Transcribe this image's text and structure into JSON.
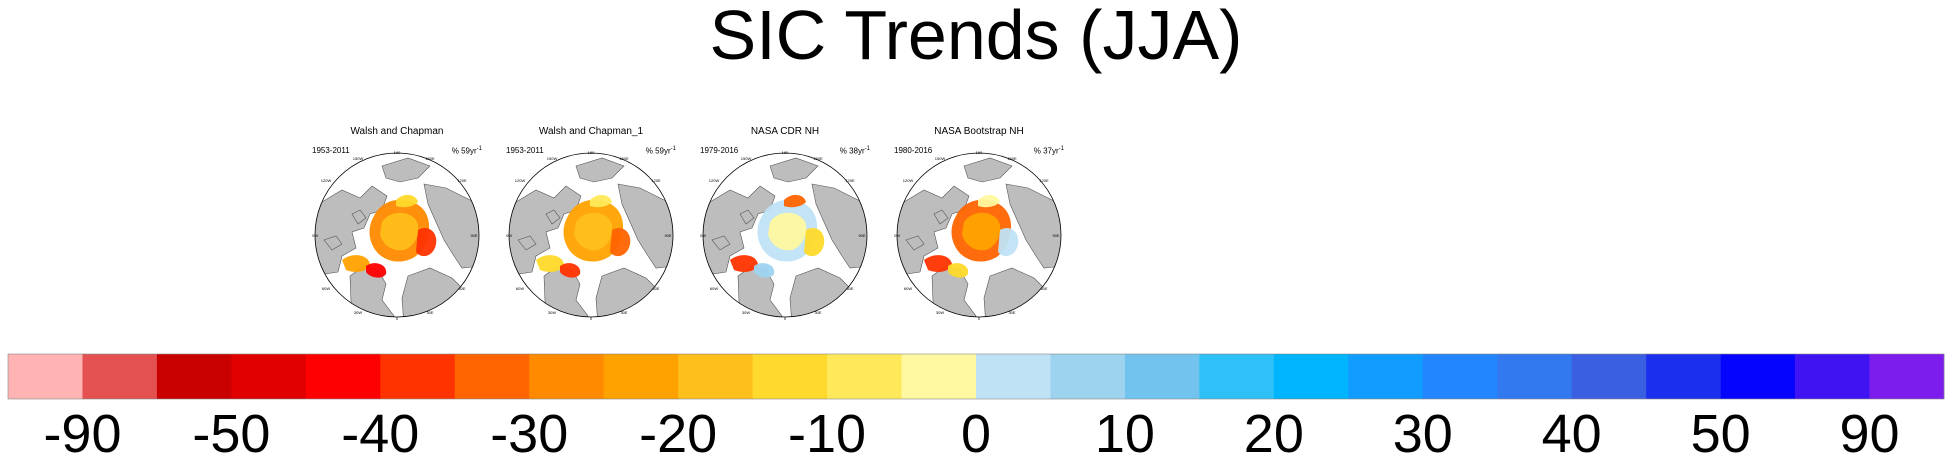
{
  "title": "SIC Trends (JJA)",
  "panels": [
    {
      "title": "Walsh and Chapman",
      "years": "1953-2011",
      "rate": "% 59yr",
      "rate_exp": "-1",
      "variant": 0
    },
    {
      "title": "Walsh and Chapman_1",
      "years": "1953-2011",
      "rate": "% 59yr",
      "rate_exp": "-1",
      "variant": 1
    },
    {
      "title": "NASA CDR NH",
      "years": "1979-2016",
      "rate": "% 38yr",
      "rate_exp": "-1",
      "variant": 2
    },
    {
      "title": "NASA Bootstrap NH",
      "years": "1980-2016",
      "rate": "% 37yr",
      "rate_exp": "-1",
      "variant": 3
    }
  ],
  "map_labels": {
    "top": "180",
    "bottom": "0",
    "left": "90W",
    "right": "90E",
    "ul1": "150W",
    "ul2": "120W",
    "ur1": "150E",
    "ur2": "120E",
    "ll1": "60W",
    "ll2": "30W",
    "lr1": "60E",
    "lr2": "30E"
  },
  "colorbar": {
    "colors": [
      "#ffb3b3",
      "#e35151",
      "#c80000",
      "#e00000",
      "#ff0000",
      "#ff3300",
      "#ff6400",
      "#ff8a00",
      "#ffa200",
      "#ffbf1a",
      "#ffd92b",
      "#ffe95a",
      "#fff8a0",
      "#bfe3f5",
      "#9dd3ef",
      "#72c4ef",
      "#2ec1f7",
      "#00b4fe",
      "#119cff",
      "#2186ff",
      "#3278ef",
      "#3a5fe0",
      "#1b2fee",
      "#0505ff",
      "#4013f3",
      "#7d1ded"
    ],
    "labels": [
      "-90",
      "-50",
      "-40",
      "-30",
      "-20",
      "-10",
      "0",
      "10",
      "20",
      "30",
      "40",
      "50",
      "90"
    ]
  }
}
